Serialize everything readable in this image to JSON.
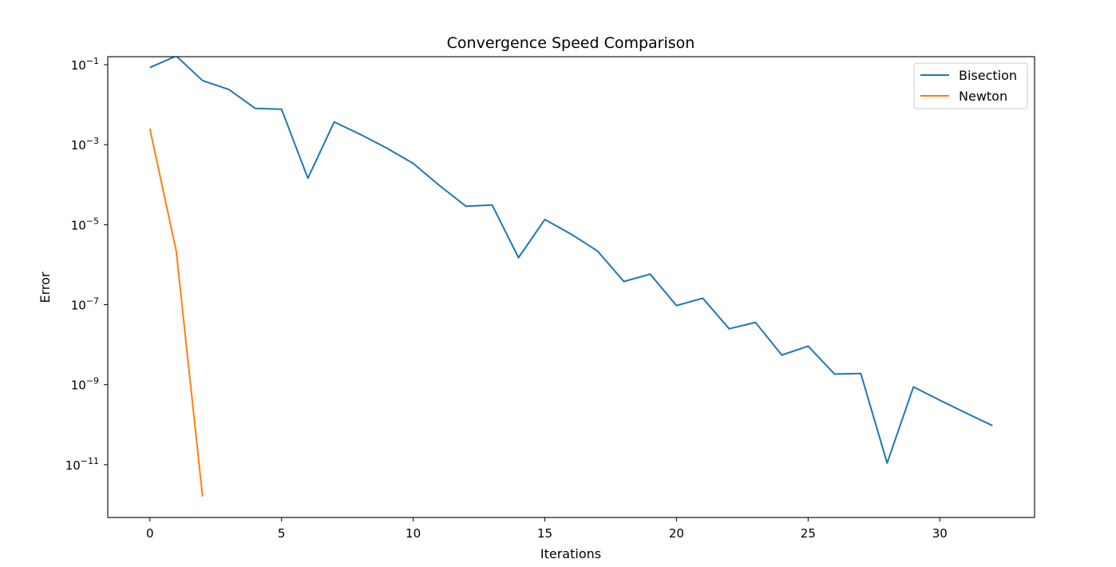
{
  "chart_data": {
    "type": "line",
    "title": "Convergence Speed Comparison",
    "xlabel": "Iterations",
    "ylabel": "Error",
    "xlim": [
      -1.6,
      33.6
    ],
    "xticks": [
      0,
      5,
      10,
      15,
      20,
      25,
      30
    ],
    "yscale": "log",
    "ylim_exponent": [
      -12.32,
      -0.8
    ],
    "yticks_exponent": [
      -1,
      -3,
      -5,
      -7,
      -9,
      -11
    ],
    "grid": false,
    "legend_position": "top-right",
    "colors": {
      "Bisection": "#1f77b4",
      "Newton": "#ff7f0e"
    },
    "series": [
      {
        "name": "Bisection",
        "x": [
          0,
          1,
          2,
          3,
          4,
          5,
          6,
          7,
          8,
          9,
          10,
          11,
          12,
          13,
          14,
          15,
          16,
          17,
          18,
          19,
          20,
          21,
          22,
          23,
          24,
          25,
          26,
          27,
          28,
          29,
          30,
          31,
          32
        ],
        "y": [
          0.085,
          0.165,
          0.04,
          0.024,
          0.0081,
          0.0077,
          0.000145,
          0.0037,
          0.0018,
          0.00082,
          0.00034,
          9.5e-05,
          2.9e-05,
          3.1e-05,
          1.5e-06,
          1.35e-05,
          5.8e-06,
          2.2e-06,
          3.8e-07,
          5.8e-07,
          9.5e-08,
          1.45e-07,
          2.5e-08,
          3.6e-08,
          5.5e-09,
          9.2e-09,
          1.85e-09,
          1.9e-09,
          1.1e-11,
          8.8e-10,
          4.1e-10,
          1.95e-10,
          9.5e-11
        ]
      },
      {
        "name": "Newton",
        "x": [
          0,
          1,
          2
        ],
        "y": [
          0.0025,
          2.2e-06,
          1.6e-12
        ]
      }
    ]
  }
}
